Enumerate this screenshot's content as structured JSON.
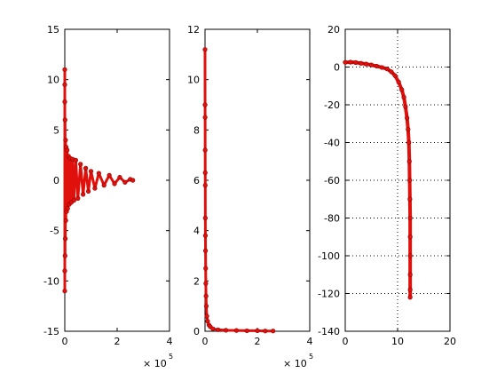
{
  "figure": {
    "background": "#ffffff",
    "marker_color": "#e0100c",
    "marker_edge": "#8b0000"
  },
  "chart_data": [
    {
      "type": "scatter",
      "title": "",
      "xlabel": "",
      "ylabel": "",
      "xlim": [
        0,
        4
      ],
      "ylim": [
        -15,
        15
      ],
      "x_ticks": [
        "0",
        "2",
        "4"
      ],
      "y_ticks": [
        "15",
        "10",
        "5",
        "0",
        "-5",
        "-10",
        "-15"
      ],
      "x_ticks_val": [
        0,
        2,
        4
      ],
      "y_ticks_val": [
        15,
        10,
        5,
        0,
        -5,
        -10,
        -15
      ],
      "x_multiplier": {
        "base": "× 10",
        "exponent": "5"
      },
      "grid": false,
      "series": [
        {
          "x": [
            0,
            0,
            0,
            0,
            0,
            0.01,
            0.01,
            0.02,
            0.03,
            0.04,
            0.05,
            0.07,
            0.09,
            0.11,
            0.14,
            0.17,
            0.2,
            0.25,
            0.3,
            0.35,
            0.42,
            0.5,
            0.6,
            0.7,
            0.8,
            0.9,
            1.0,
            1.15,
            1.3,
            1.5,
            1.7,
            1.9,
            2.1,
            2.3,
            2.5,
            2.6
          ],
          "y": [
            11,
            -11,
            9.5,
            -9,
            7.8,
            -7.5,
            6,
            -5.8,
            4,
            -4,
            3.3,
            -3.1,
            3,
            -2.8,
            2.4,
            -2.4,
            2.2,
            -2.2,
            2.1,
            -2,
            2,
            -1.8,
            1.6,
            -1.4,
            1.2,
            -1.1,
            0.9,
            -0.8,
            0.7,
            -0.5,
            0.5,
            -0.35,
            0.3,
            -0.2,
            0.1,
            0
          ]
        }
      ]
    },
    {
      "type": "scatter",
      "title": "",
      "xlabel": "",
      "ylabel": "",
      "xlim": [
        0,
        4
      ],
      "ylim": [
        0,
        12
      ],
      "x_ticks": [
        "0",
        "2",
        "4"
      ],
      "y_ticks": [
        "12",
        "10",
        "8",
        "6",
        "4",
        "2",
        "0"
      ],
      "x_ticks_val": [
        0,
        2,
        4
      ],
      "y_ticks_val": [
        12,
        10,
        8,
        6,
        4,
        2,
        0
      ],
      "x_multiplier": {
        "base": "× 10",
        "exponent": "5"
      },
      "grid": false,
      "series": [
        {
          "x": [
            0,
            0.002,
            0.004,
            0.006,
            0.008,
            0.01,
            0.012,
            0.015,
            0.02,
            0.025,
            0.03,
            0.04,
            0.05,
            0.07,
            0.1,
            0.15,
            0.2,
            0.3,
            0.5,
            0.8,
            1.2,
            1.6,
            2.0,
            2.3,
            2.6
          ],
          "y": [
            11.2,
            9.0,
            8.5,
            7.2,
            6.3,
            5.8,
            4.5,
            3.8,
            3.2,
            2.5,
            1.9,
            1.4,
            1.0,
            0.6,
            0.4,
            0.25,
            0.18,
            0.1,
            0.06,
            0.04,
            0.03,
            0.02,
            0.02,
            0.01,
            0.01
          ]
        }
      ]
    },
    {
      "type": "scatter",
      "title": "",
      "xlabel": "",
      "ylabel": "",
      "xlim": [
        0,
        20
      ],
      "ylim": [
        -140,
        20
      ],
      "x_ticks": [
        "0",
        "10",
        "20"
      ],
      "y_ticks": [
        "20",
        "0",
        "-20",
        "-40",
        "-60",
        "-80",
        "-100",
        "-120",
        "-140"
      ],
      "x_ticks_val": [
        0,
        10,
        20
      ],
      "y_ticks_val": [
        20,
        0,
        -20,
        -40,
        -60,
        -80,
        -100,
        -120,
        -140
      ],
      "grid": true,
      "series": [
        {
          "x": [
            0,
            1,
            2,
            3,
            4,
            5,
            6,
            7,
            8,
            8.8,
            9.5,
            10.2,
            10.8,
            11.2,
            11.5,
            11.8,
            12.0,
            12.15,
            12.25,
            12.3,
            12.35,
            12.4,
            12.4,
            12.4,
            12.4,
            12.4,
            12.4
          ],
          "y": [
            2.5,
            2.6,
            2.4,
            2.0,
            1.6,
            1.1,
            0.5,
            -0.2,
            -1.0,
            -2.5,
            -4.5,
            -8,
            -12,
            -16,
            -21,
            -27,
            -33,
            -40,
            -50,
            -60,
            -70,
            -80,
            -90,
            -100,
            -110,
            -118,
            -122
          ]
        }
      ]
    }
  ]
}
